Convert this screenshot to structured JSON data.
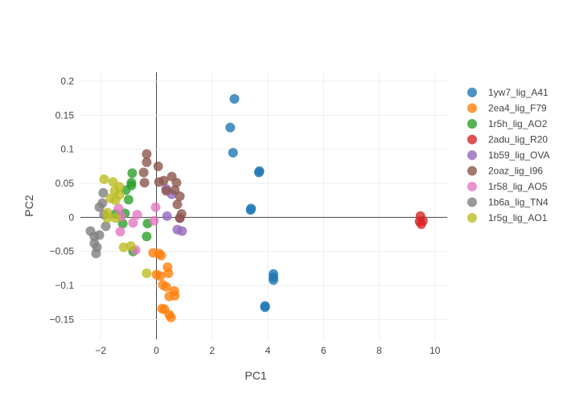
{
  "chart_data": {
    "type": "scatter",
    "title": "",
    "xlabel": "PC1",
    "ylabel": "PC2",
    "xlim": [
      -2.73,
      10.44
    ],
    "ylim": [
      -0.179,
      0.213
    ],
    "xticks": [
      -2,
      0,
      2,
      4,
      6,
      8,
      10
    ],
    "xtick_labels": [
      "−2",
      "0",
      "2",
      "4",
      "6",
      "8",
      "10"
    ],
    "yticks": [
      0.2,
      0.15,
      0.1,
      0.05,
      0,
      -0.05,
      -0.1,
      -0.15
    ],
    "ytick_labels": [
      "0.2",
      "0.15",
      "0.1",
      "0.05",
      "0",
      "−0.05",
      "−0.1",
      "−0.15"
    ],
    "grid": true,
    "legend_position": "right",
    "series": [
      {
        "name": "1yw7_lig_A41",
        "color": "#1f77b4",
        "points": [
          [
            2.8,
            0.174
          ],
          [
            2.65,
            0.132
          ],
          [
            2.75,
            0.095
          ],
          [
            3.7,
            0.068
          ],
          [
            3.68,
            0.066
          ],
          [
            3.4,
            0.013
          ],
          [
            3.38,
            0.011
          ],
          [
            4.2,
            -0.083
          ],
          [
            4.2,
            -0.088
          ],
          [
            4.2,
            -0.092
          ],
          [
            3.9,
            -0.13
          ],
          [
            3.9,
            -0.132
          ]
        ]
      },
      {
        "name": "2ea4_lig_F79",
        "color": "#ff7f0e",
        "points": [
          [
            -0.12,
            -0.052
          ],
          [
            0.09,
            -0.053
          ],
          [
            0.17,
            -0.056
          ],
          [
            0.4,
            -0.073
          ],
          [
            0.43,
            -0.082
          ],
          [
            0,
            -0.084
          ],
          [
            0.14,
            -0.086
          ],
          [
            0.23,
            -0.099
          ],
          [
            0.35,
            -0.102
          ],
          [
            0.64,
            -0.108
          ],
          [
            0.66,
            -0.115
          ],
          [
            0.46,
            -0.116
          ],
          [
            0.2,
            -0.134
          ],
          [
            0.29,
            -0.135
          ],
          [
            0.46,
            -0.143
          ],
          [
            0.52,
            -0.147
          ]
        ]
      },
      {
        "name": "1r5h_lig_AO2",
        "color": "#2ca02c",
        "points": [
          [
            -0.87,
            0.065
          ],
          [
            -0.9,
            0.051
          ],
          [
            -0.9,
            0.047
          ],
          [
            -1.1,
            0.04
          ],
          [
            -1.0,
            0.026
          ],
          [
            -1.47,
            0.005
          ],
          [
            -1.13,
            0.006
          ],
          [
            -1.21,
            -0.009
          ],
          [
            -0.32,
            -0.009
          ],
          [
            -0.35,
            -0.028
          ],
          [
            -0.84,
            -0.05
          ]
        ]
      },
      {
        "name": "2adu_lig_R20",
        "color": "#d62728",
        "points": [
          [
            9.48,
            0.002
          ],
          [
            9.57,
            -0.005
          ],
          [
            9.51,
            -0.01
          ],
          [
            9.45,
            -0.006
          ]
        ]
      },
      {
        "name": "1b59_lig_OVA",
        "color": "#9467bd",
        "points": [
          [
            0.35,
            0.042
          ],
          [
            0.55,
            0.034
          ],
          [
            0.38,
            0.002
          ],
          [
            0.75,
            -0.018
          ],
          [
            0.92,
            -0.02
          ],
          [
            0.84,
            -0.001
          ]
        ]
      },
      {
        "name": "2oaz_lig_I96",
        "color": "#8c564b",
        "points": [
          [
            -0.35,
            0.093
          ],
          [
            -0.35,
            0.081
          ],
          [
            0.06,
            0.075
          ],
          [
            -0.46,
            0.066
          ],
          [
            -0.43,
            0.051
          ],
          [
            0.09,
            0.052
          ],
          [
            0.26,
            0.054
          ],
          [
            0.55,
            0.06
          ],
          [
            0.72,
            0.051
          ],
          [
            0.35,
            0.039
          ],
          [
            0.66,
            0.04
          ],
          [
            0.84,
            0.031
          ],
          [
            0.75,
            0.019
          ],
          [
            0.9,
            0.005
          ],
          [
            0.84,
            -0.001
          ]
        ]
      },
      {
        "name": "1r58_lig_AO5",
        "color": "#e377c2",
        "points": [
          [
            -0.03,
            0.015
          ],
          [
            -0.69,
            0.004
          ],
          [
            -0.84,
            -0.008
          ],
          [
            -1.27,
            0.001
          ],
          [
            -1.3,
            -0.021
          ],
          [
            -0.09,
            -0.005
          ],
          [
            -0.75,
            -0.048
          ],
          [
            -1.36,
            0.013
          ]
        ]
      },
      {
        "name": "1b6a_lig_TN4",
        "color": "#7f7f7f",
        "points": [
          [
            -1.91,
            0.036
          ],
          [
            -1.94,
            0.021
          ],
          [
            -2.05,
            0.015
          ],
          [
            -1.88,
            0.004
          ],
          [
            -1.82,
            -0.013
          ],
          [
            -2.37,
            -0.02
          ],
          [
            -2.23,
            -0.028
          ],
          [
            -2.05,
            -0.026
          ],
          [
            -2.23,
            -0.038
          ],
          [
            -2.14,
            -0.044
          ],
          [
            -2.17,
            -0.053
          ]
        ]
      },
      {
        "name": "1r5g_lig_AO1",
        "color": "#bcbd22",
        "points": [
          [
            -1.88,
            0.056
          ],
          [
            -1.56,
            0.052
          ],
          [
            -1.33,
            0.045
          ],
          [
            -1.5,
            0.039
          ],
          [
            -1.65,
            0.028
          ],
          [
            -1.47,
            0.025
          ],
          [
            -1.33,
            0.033
          ],
          [
            -1.76,
            0.007
          ],
          [
            -1.47,
            -0.001
          ],
          [
            -1.76,
            -0.001
          ],
          [
            -1.18,
            -0.044
          ],
          [
            -0.92,
            -0.042
          ],
          [
            -0.35,
            -0.082
          ]
        ]
      }
    ]
  }
}
